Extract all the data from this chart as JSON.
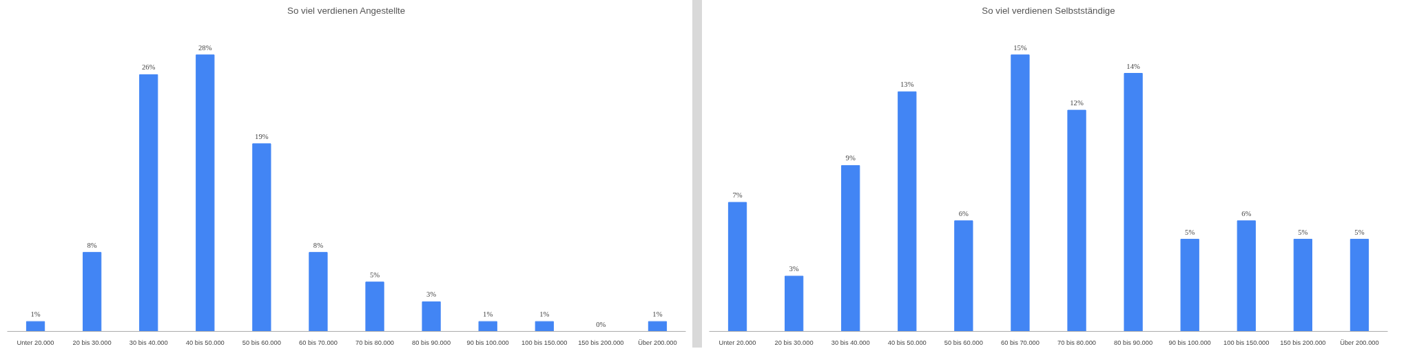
{
  "chart_data": [
    {
      "type": "bar",
      "title": "So viel verdienen Angestellte",
      "categories": [
        "Unter 20.000",
        "20 bis 30.000",
        "30 bis 40.000",
        "40 bis 50.000",
        "50 bis 60.000",
        "60 bis 70.000",
        "70 bis 80.000",
        "80 bis 90.000",
        "90 bis 100.000",
        "100 bis 150.000",
        "150 bis 200.000",
        "Über 200.000"
      ],
      "values": [
        1,
        8,
        26,
        28,
        19,
        8,
        5,
        3,
        1,
        1,
        0,
        1
      ],
      "value_labels": [
        "1%",
        "8%",
        "26%",
        "28%",
        "19%",
        "8%",
        "5%",
        "3%",
        "1%",
        "1%",
        "0%",
        "1%"
      ],
      "color": "#4285f4",
      "grid": false,
      "tick_labels": "x"
    },
    {
      "type": "bar",
      "title": "So viel verdienen Selbstständige",
      "categories": [
        "Unter 20.000",
        "20 bis 30.000",
        "30 bis 40.000",
        "40 bis 50.000",
        "50 bis 60.000",
        "60 bis 70.000",
        "70 bis 80.000",
        "80 bis 90.000",
        "90 bis 100.000",
        "100 bis 150.000",
        "150 bis 200.000",
        "Über 200.000"
      ],
      "values": [
        7,
        3,
        9,
        13,
        6,
        15,
        12,
        14,
        5,
        6,
        5,
        5
      ],
      "value_labels": [
        "7%",
        "3%",
        "9%",
        "13%",
        "6%",
        "15%",
        "12%",
        "14%",
        "5%",
        "6%",
        "5%",
        "5%"
      ],
      "color": "#4285f4",
      "grid": false,
      "tick_labels": "x"
    }
  ]
}
